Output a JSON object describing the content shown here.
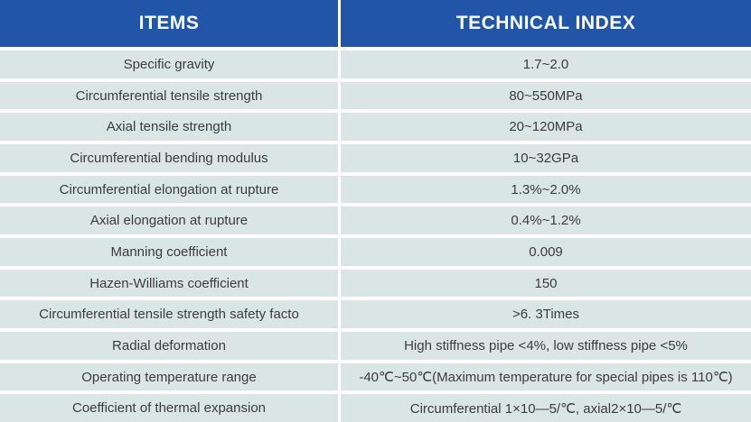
{
  "colors": {
    "header_bg": "#2155a8",
    "header_text": "#ffffff",
    "row_bg": "#d9e6e3",
    "row_text": "#3d3d3d",
    "divider": "#ffffff"
  },
  "table": {
    "columns": [
      {
        "label": "ITEMS"
      },
      {
        "label": "TECHNICAL INDEX"
      }
    ],
    "rows": [
      {
        "item": "Specific gravity",
        "value": "1.7~2.0"
      },
      {
        "item": "Circumferential tensile strength",
        "value": "80~550MPa"
      },
      {
        "item": "Axial tensile strength",
        "value": "20~120MPa"
      },
      {
        "item": "Circumferential bending modulus",
        "value": "10~32GPa"
      },
      {
        "item": "Circumferential elongation at rupture",
        "value": "1.3%~2.0%"
      },
      {
        "item": "Axial elongation at rupture",
        "value": "0.4%~1.2%"
      },
      {
        "item": "Manning coefficient",
        "value": "0.009"
      },
      {
        "item": "Hazen-Williams coefficient",
        "value": "150"
      },
      {
        "item": "Circumferential tensile strength safety facto",
        "value": ">6. 3Times"
      },
      {
        "item": "Radial deformation",
        "value": "High stiffness pipe <4%, low stiffness pipe <5%"
      },
      {
        "item": "Operating temperature range",
        "value": "-40℃~50℃(Maximum temperature for special pipes is 110℃)"
      },
      {
        "item": "Coefficient of thermal expansion",
        "value": "Circumferential 1×10—5/℃, axial2×10—5/℃"
      }
    ]
  }
}
